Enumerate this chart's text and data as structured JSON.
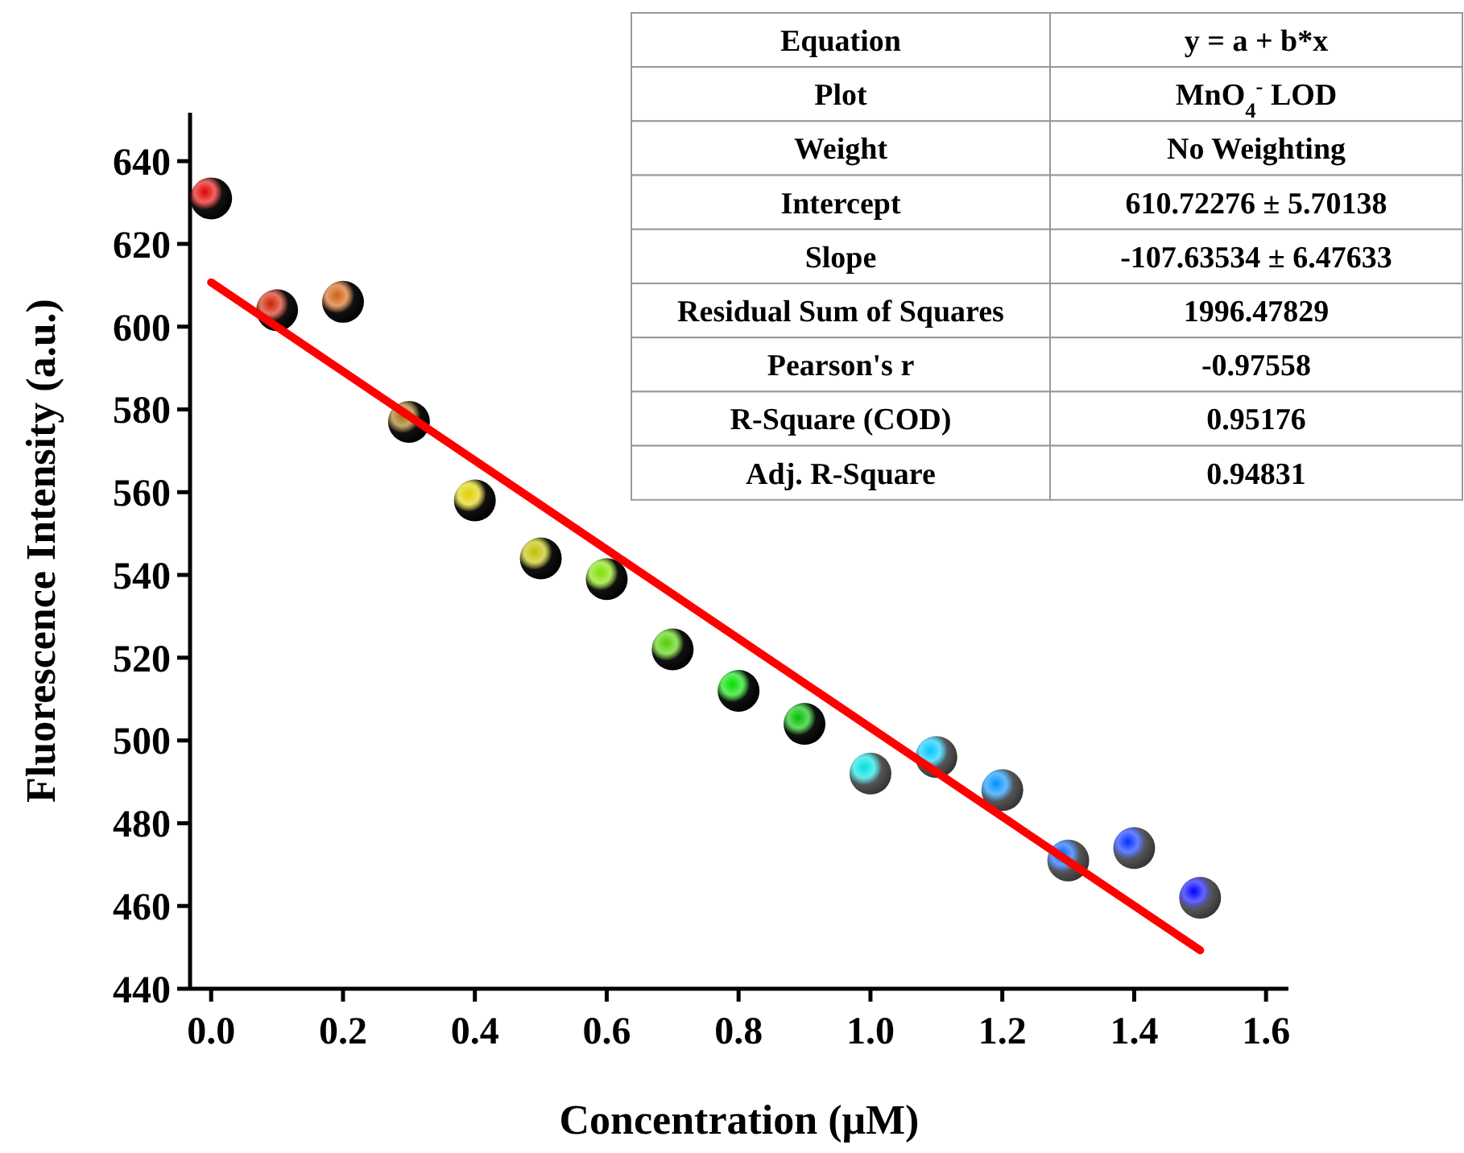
{
  "chart_data": {
    "type": "scatter",
    "xlabel": "Concentration (μM)",
    "ylabel": "Fluorescence Intensity (a.u.)",
    "xlim": [
      -0.032,
      1.634
    ],
    "ylim": [
      440,
      651.7
    ],
    "xticks": [
      {
        "value": 0,
        "label": "0.0"
      },
      {
        "value": 0.2,
        "label": "0.2"
      },
      {
        "value": 0.4,
        "label": "0.4"
      },
      {
        "value": 0.6,
        "label": "0.6"
      },
      {
        "value": 0.8,
        "label": "0.8"
      },
      {
        "value": 1,
        "label": "1.0"
      },
      {
        "value": 1.2,
        "label": "1.2"
      },
      {
        "value": 1.4,
        "label": "1.4"
      },
      {
        "value": 1.6,
        "label": "1.6"
      }
    ],
    "yticks": [
      440,
      460,
      480,
      500,
      520,
      540,
      560,
      580,
      600,
      620,
      640
    ],
    "grid": false,
    "marker": "circle",
    "series": [
      {
        "type": "scatter",
        "x": [
          0,
          0.1,
          0.2,
          0.3,
          0.4,
          0.5,
          0.6,
          0.7,
          0.8,
          0.9,
          1.0,
          1.1,
          1.2,
          1.3,
          1.4,
          1.5
        ],
        "values": [
          631,
          604,
          606,
          577,
          558,
          544,
          539,
          522,
          512,
          504,
          492,
          496,
          488,
          471,
          474,
          462
        ],
        "colors": [
          "#e00000",
          "#d02000",
          "#d06010",
          "#a07010",
          "#e0d000",
          "#c0c000",
          "#80e000",
          "#50d000",
          "#00e000",
          "#00c000",
          "#00e0e0",
          "#00c8ff",
          "#0090ff",
          "#0060ff",
          "#0030ff",
          "#0000ff"
        ]
      },
      {
        "type": "line",
        "x": [
          0,
          1.5
        ],
        "values": [
          610.7,
          449.3
        ],
        "color": "#ff0000",
        "line_style": "solid",
        "marker": "none"
      }
    ],
    "annotations": [
      "Equation",
      "y = a + b*x",
      "Plot",
      "MnO$_{4}$$^{-}$ LOD",
      "Weight",
      "No Weighting",
      "Intercept",
      "610.72276 ± 5.70138",
      "Slope",
      "-107.63534 ± 6.47633",
      "Residual Sum of Squares",
      "1996.47829",
      "Pearson's r",
      "-0.97558",
      "R-Square (COD)",
      "0.95176",
      "Adj. R-Square",
      "0.94831"
    ]
  }
}
